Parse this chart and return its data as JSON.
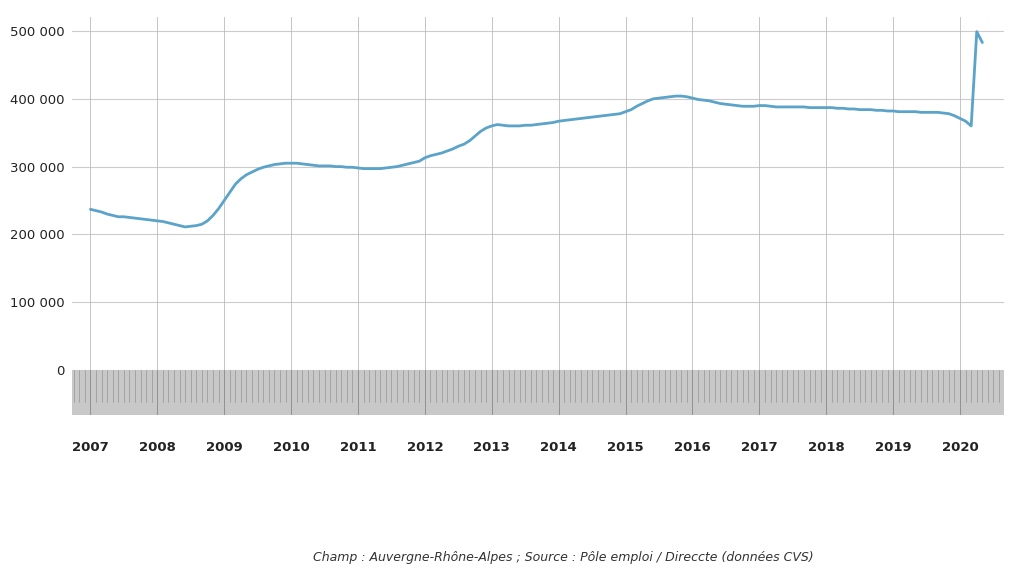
{
  "title": "",
  "source_text": "Champ : Auvergne-Rhône-Alpes ; Source : Pôle emploi / Direccte (données CVS)",
  "line_color": "#5ba3c9",
  "line_width": 2.0,
  "background_color": "#ffffff",
  "ylim": [
    0,
    520000
  ],
  "yticks": [
    0,
    100000,
    200000,
    300000,
    400000,
    500000
  ],
  "ytick_labels": [
    "0",
    "100 000",
    "200 000",
    "300 000",
    "400 000",
    "500 000"
  ],
  "grid_color": "#cccccc",
  "tick_area_color": "#c8c8c8",
  "year_labels": [
    "2007",
    "2008",
    "2009",
    "2010",
    "2011",
    "2012",
    "2013",
    "2014",
    "2015",
    "2016",
    "2017",
    "2018",
    "2019",
    "2020"
  ],
  "data": {
    "2007-01": 237000,
    "2007-02": 235000,
    "2007-03": 233000,
    "2007-04": 230000,
    "2007-05": 228000,
    "2007-06": 226000,
    "2007-07": 226000,
    "2007-08": 225000,
    "2007-09": 224000,
    "2007-10": 223000,
    "2007-11": 222000,
    "2007-12": 221000,
    "2008-01": 220000,
    "2008-02": 219000,
    "2008-03": 217000,
    "2008-04": 215000,
    "2008-05": 213000,
    "2008-06": 211000,
    "2008-07": 212000,
    "2008-08": 213000,
    "2008-09": 215000,
    "2008-10": 220000,
    "2008-11": 228000,
    "2008-12": 238000,
    "2009-01": 250000,
    "2009-02": 262000,
    "2009-03": 274000,
    "2009-04": 282000,
    "2009-05": 288000,
    "2009-06": 292000,
    "2009-07": 296000,
    "2009-08": 299000,
    "2009-09": 301000,
    "2009-10": 303000,
    "2009-11": 304000,
    "2009-12": 305000,
    "2010-01": 305000,
    "2010-02": 305000,
    "2010-03": 304000,
    "2010-04": 303000,
    "2010-05": 302000,
    "2010-06": 301000,
    "2010-07": 301000,
    "2010-08": 301000,
    "2010-09": 300000,
    "2010-10": 300000,
    "2010-11": 299000,
    "2010-12": 299000,
    "2011-01": 298000,
    "2011-02": 297000,
    "2011-03": 297000,
    "2011-04": 297000,
    "2011-05": 297000,
    "2011-06": 298000,
    "2011-07": 299000,
    "2011-08": 300000,
    "2011-09": 302000,
    "2011-10": 304000,
    "2011-11": 306000,
    "2011-12": 308000,
    "2012-01": 313000,
    "2012-02": 316000,
    "2012-03": 318000,
    "2012-04": 320000,
    "2012-05": 323000,
    "2012-06": 326000,
    "2012-07": 330000,
    "2012-08": 333000,
    "2012-09": 338000,
    "2012-10": 345000,
    "2012-11": 352000,
    "2012-12": 357000,
    "2013-01": 360000,
    "2013-02": 362000,
    "2013-03": 361000,
    "2013-04": 360000,
    "2013-05": 360000,
    "2013-06": 360000,
    "2013-07": 361000,
    "2013-08": 361000,
    "2013-09": 362000,
    "2013-10": 363000,
    "2013-11": 364000,
    "2013-12": 365000,
    "2014-01": 367000,
    "2014-02": 368000,
    "2014-03": 369000,
    "2014-04": 370000,
    "2014-05": 371000,
    "2014-06": 372000,
    "2014-07": 373000,
    "2014-08": 374000,
    "2014-09": 375000,
    "2014-10": 376000,
    "2014-11": 377000,
    "2014-12": 378000,
    "2015-01": 381000,
    "2015-02": 384000,
    "2015-03": 389000,
    "2015-04": 393000,
    "2015-05": 397000,
    "2015-06": 400000,
    "2015-07": 401000,
    "2015-08": 402000,
    "2015-09": 403000,
    "2015-10": 404000,
    "2015-11": 404000,
    "2015-12": 403000,
    "2016-01": 401000,
    "2016-02": 399000,
    "2016-03": 398000,
    "2016-04": 397000,
    "2016-05": 395000,
    "2016-06": 393000,
    "2016-07": 392000,
    "2016-08": 391000,
    "2016-09": 390000,
    "2016-10": 389000,
    "2016-11": 389000,
    "2016-12": 389000,
    "2017-01": 390000,
    "2017-02": 390000,
    "2017-03": 389000,
    "2017-04": 388000,
    "2017-05": 388000,
    "2017-06": 388000,
    "2017-07": 388000,
    "2017-08": 388000,
    "2017-09": 388000,
    "2017-10": 387000,
    "2017-11": 387000,
    "2017-12": 387000,
    "2018-01": 387000,
    "2018-02": 387000,
    "2018-03": 386000,
    "2018-04": 386000,
    "2018-05": 385000,
    "2018-06": 385000,
    "2018-07": 384000,
    "2018-08": 384000,
    "2018-09": 384000,
    "2018-10": 383000,
    "2018-11": 383000,
    "2018-12": 382000,
    "2019-01": 382000,
    "2019-02": 381000,
    "2019-03": 381000,
    "2019-04": 381000,
    "2019-05": 381000,
    "2019-06": 380000,
    "2019-07": 380000,
    "2019-08": 380000,
    "2019-09": 380000,
    "2019-10": 379000,
    "2019-11": 378000,
    "2019-12": 375000,
    "2020-01": 371000,
    "2020-02": 367000,
    "2020-03": 360000,
    "2020-04": 499000,
    "2020-05": 483000
  }
}
